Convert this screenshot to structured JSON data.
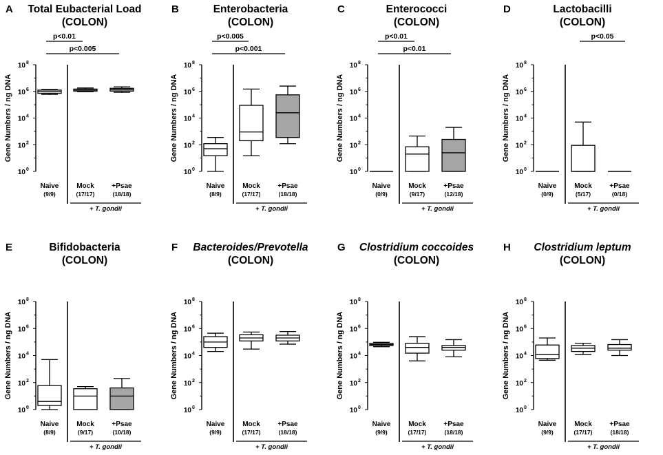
{
  "chart_data": {
    "type": "box",
    "y_axis": {
      "label": "Gene Numbers / ng DNA",
      "scale": "log10",
      "ylim": [
        1,
        100000000
      ],
      "ticks": [
        {
          "base": "10",
          "exp": "0"
        },
        {
          "base": "10",
          "exp": "2"
        },
        {
          "base": "10",
          "exp": "4"
        },
        {
          "base": "10",
          "exp": "6"
        },
        {
          "base": "10",
          "exp": "8"
        }
      ]
    },
    "categories": [
      "Naive",
      "Mock",
      "+Psae"
    ],
    "group_label": "+ T. gondii",
    "panels": [
      {
        "letter": "A",
        "title": "Total Eubacterial Load",
        "title_italic": false,
        "subtitle": "(COLON)",
        "counts": [
          "(9/9)",
          "(17/17)",
          "(18/18)"
        ],
        "boxes": [
          {
            "min": 600000,
            "q1": 720000,
            "median": 950000,
            "q3": 1250000,
            "max": 1400000,
            "filled": false
          },
          {
            "min": 950000,
            "q1": 1050000,
            "median": 1250000,
            "q3": 1500000,
            "max": 1800000,
            "filled": false
          },
          {
            "min": 850000,
            "q1": 1050000,
            "median": 1350000,
            "q3": 1700000,
            "max": 2200000,
            "filled": true
          }
        ],
        "significance": [
          {
            "label": "p<0.01",
            "from": 0,
            "to": 1
          },
          {
            "label": "p<0.005",
            "from": 0,
            "to": 2
          }
        ]
      },
      {
        "letter": "B",
        "title": "Enterobacteria",
        "title_italic": false,
        "subtitle": "(COLON)",
        "counts": [
          "(8/9)",
          "(17/17)",
          "(18/18)"
        ],
        "boxes": [
          {
            "min": 1,
            "q1": 15,
            "median": 50,
            "q3": 120,
            "max": 350,
            "filled": false
          },
          {
            "min": 15,
            "q1": 200,
            "median": 900,
            "q3": 90000,
            "max": 1500000,
            "filled": false
          },
          {
            "min": 120,
            "q1": 350,
            "median": 25000,
            "q3": 550000,
            "max": 2500000,
            "filled": true
          }
        ],
        "significance": [
          {
            "label": "p<0.005",
            "from": 0,
            "to": 1
          },
          {
            "label": "p<0.001",
            "from": 0,
            "to": 2
          }
        ]
      },
      {
        "letter": "C",
        "title": "Enterococci",
        "title_italic": false,
        "subtitle": "(COLON)",
        "counts": [
          "(0/9)",
          "(9/17)",
          "(12/18)"
        ],
        "boxes": [
          {
            "line": 1,
            "filled": false
          },
          {
            "min": 1,
            "q1": 1,
            "median": 20,
            "q3": 70,
            "max": 450,
            "filled": false
          },
          {
            "min": 1,
            "q1": 1,
            "median": 25,
            "q3": 250,
            "max": 2000,
            "filled": true
          }
        ],
        "significance": [
          {
            "label": "p<0.01",
            "from": 0,
            "to": 1
          },
          {
            "label": "p<0.01",
            "from": 0,
            "to": 2
          }
        ]
      },
      {
        "letter": "D",
        "title": "Lactobacilli",
        "title_italic": false,
        "subtitle": "(COLON)",
        "counts": [
          "(0/9)",
          "(5/17)",
          "(0/18)"
        ],
        "boxes": [
          {
            "line": 1,
            "filled": false
          },
          {
            "min": 1,
            "q1": 1,
            "median": 1,
            "q3": 90,
            "max": 5000,
            "filled": false
          },
          {
            "line": 1,
            "filled": true
          }
        ],
        "significance": [
          {
            "label": "p<0.05",
            "from": 1,
            "to": 2
          }
        ]
      },
      {
        "letter": "E",
        "title": "Bifidobacteria",
        "title_italic": false,
        "subtitle": "(COLON)",
        "counts": [
          "(8/9)",
          "(9/17)",
          "(10/18)"
        ],
        "boxes": [
          {
            "min": 1,
            "q1": 2,
            "median": 4,
            "q3": 60,
            "max": 5000,
            "filled": false
          },
          {
            "min": 1,
            "q1": 1,
            "median": 10,
            "q3": 35,
            "max": 50,
            "filled": false
          },
          {
            "min": 1,
            "q1": 1,
            "median": 10,
            "q3": 40,
            "max": 200,
            "filled": true
          }
        ],
        "significance": []
      },
      {
        "letter": "F",
        "title": "Bacteroides/Prevotella",
        "title_italic": true,
        "subtitle": "(COLON)",
        "counts": [
          "(9/9)",
          "(17/17)",
          "(18/18)"
        ],
        "boxes": [
          {
            "min": 20000,
            "q1": 40000,
            "median": 100000,
            "q3": 250000,
            "max": 450000,
            "filled": false
          },
          {
            "min": 30000,
            "q1": 120000,
            "median": 200000,
            "q3": 350000,
            "max": 550000,
            "filled": false
          },
          {
            "min": 70000,
            "q1": 120000,
            "median": 200000,
            "q3": 320000,
            "max": 600000,
            "filled": false
          }
        ],
        "significance": []
      },
      {
        "letter": "G",
        "title": "Clostridium coccoides",
        "title_italic": true,
        "subtitle": "(COLON)",
        "counts": [
          "(9/9)",
          "(17/17)",
          "(18/18)"
        ],
        "boxes": [
          {
            "min": 45000,
            "q1": 55000,
            "median": 65000,
            "q3": 80000,
            "max": 95000,
            "filled": false
          },
          {
            "min": 4000,
            "q1": 15000,
            "median": 40000,
            "q3": 80000,
            "max": 250000,
            "filled": false
          },
          {
            "min": 8000,
            "q1": 25000,
            "median": 40000,
            "q3": 55000,
            "max": 150000,
            "filled": false
          }
        ],
        "significance": []
      },
      {
        "letter": "H",
        "title": "Clostridium leptum",
        "title_italic": true,
        "subtitle": "(COLON)",
        "counts": [
          "(9/9)",
          "(17/17)",
          "(18/18)"
        ],
        "boxes": [
          {
            "min": 4500,
            "q1": 6000,
            "median": 12000,
            "q3": 60000,
            "max": 200000,
            "filled": false
          },
          {
            "min": 12000,
            "q1": 20000,
            "median": 35000,
            "q3": 55000,
            "max": 80000,
            "filled": false
          },
          {
            "min": 10000,
            "q1": 25000,
            "median": 35000,
            "q3": 65000,
            "max": 150000,
            "filled": false
          }
        ],
        "significance": []
      }
    ]
  }
}
